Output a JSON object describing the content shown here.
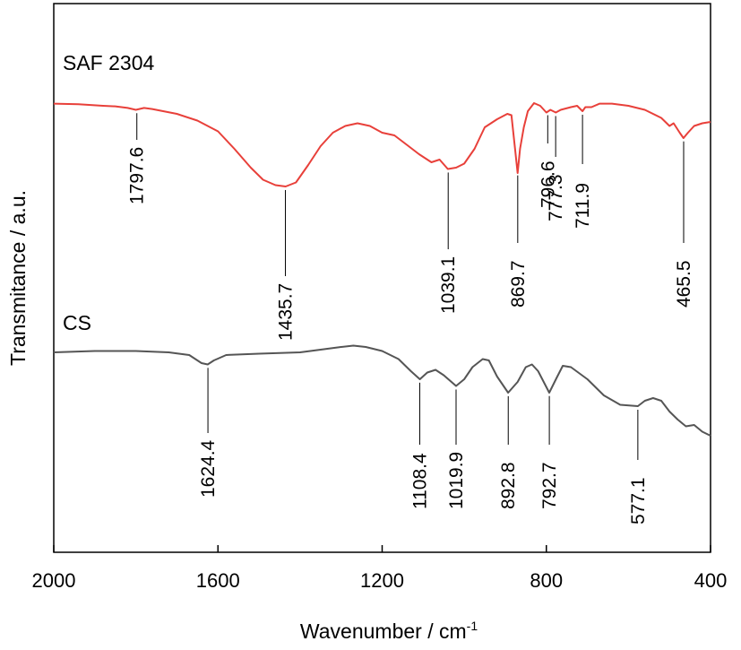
{
  "chart_data": {
    "type": "line",
    "xlabel": "Wavenumber / cm",
    "xlabel_sup": "-1",
    "ylabel": "Transmitance / a.u.",
    "xlim": [
      2000,
      400
    ],
    "x_reversed": true,
    "y_ticks_shown": false,
    "grid": false,
    "x_ticks": [
      2000,
      1600,
      1200,
      800,
      400
    ],
    "x_tick_labels": [
      "2000",
      "1600",
      "1200",
      "800",
      "400"
    ],
    "series": [
      {
        "name": "SAF 2304",
        "color": "#e8403a",
        "points": [
          [
            2000,
            0.92
          ],
          [
            1940,
            0.94
          ],
          [
            1880,
            1.0
          ],
          [
            1850,
            1.02
          ],
          [
            1820,
            1.08
          ],
          [
            1800,
            1.15
          ],
          [
            1780,
            1.08
          ],
          [
            1760,
            1.12
          ],
          [
            1700,
            1.3
          ],
          [
            1650,
            1.55
          ],
          [
            1600,
            1.95
          ],
          [
            1560,
            2.6
          ],
          [
            1520,
            3.3
          ],
          [
            1490,
            3.75
          ],
          [
            1460,
            3.95
          ],
          [
            1435,
            4.0
          ],
          [
            1410,
            3.85
          ],
          [
            1380,
            3.2
          ],
          [
            1350,
            2.5
          ],
          [
            1320,
            2.0
          ],
          [
            1290,
            1.75
          ],
          [
            1260,
            1.65
          ],
          [
            1230,
            1.75
          ],
          [
            1200,
            2.0
          ],
          [
            1170,
            2.1
          ],
          [
            1140,
            2.45
          ],
          [
            1110,
            2.8
          ],
          [
            1080,
            3.1
          ],
          [
            1060,
            3.0
          ],
          [
            1040,
            3.35
          ],
          [
            1020,
            3.3
          ],
          [
            1000,
            3.15
          ],
          [
            975,
            2.6
          ],
          [
            950,
            1.8
          ],
          [
            920,
            1.5
          ],
          [
            895,
            1.3
          ],
          [
            885,
            1.35
          ],
          [
            877,
            2.5
          ],
          [
            870,
            3.5
          ],
          [
            864,
            2.6
          ],
          [
            855,
            1.8
          ],
          [
            845,
            1.2
          ],
          [
            830,
            0.9
          ],
          [
            815,
            1.0
          ],
          [
            800,
            1.25
          ],
          [
            790,
            1.15
          ],
          [
            777,
            1.25
          ],
          [
            765,
            1.15
          ],
          [
            740,
            1.05
          ],
          [
            725,
            1.0
          ],
          [
            712,
            1.2
          ],
          [
            705,
            1.05
          ],
          [
            690,
            1.05
          ],
          [
            670,
            0.92
          ],
          [
            640,
            0.92
          ],
          [
            600,
            1.0
          ],
          [
            560,
            1.15
          ],
          [
            520,
            1.45
          ],
          [
            500,
            1.75
          ],
          [
            490,
            1.65
          ],
          [
            475,
            2.0
          ],
          [
            466,
            2.2
          ],
          [
            455,
            2.0
          ],
          [
            440,
            1.75
          ],
          [
            420,
            1.65
          ],
          [
            400,
            1.6
          ]
        ],
        "annotations": [
          {
            "x": 1797.6,
            "label": "1797.6"
          },
          {
            "x": 1435.7,
            "label": "1435.7"
          },
          {
            "x": 1039.1,
            "label": "1039.1"
          },
          {
            "x": 869.7,
            "label": "869.7"
          },
          {
            "x": 796.6,
            "label": "796.6"
          },
          {
            "x": 777.3,
            "label": "777.3"
          },
          {
            "x": 711.9,
            "label": "711.9"
          },
          {
            "x": 465.5,
            "label": "465.5"
          }
        ]
      },
      {
        "name": "CS",
        "color": "#555555",
        "points": [
          [
            2000,
            0.3
          ],
          [
            1900,
            0.25
          ],
          [
            1800,
            0.25
          ],
          [
            1720,
            0.3
          ],
          [
            1670,
            0.4
          ],
          [
            1640,
            0.7
          ],
          [
            1625,
            0.75
          ],
          [
            1610,
            0.6
          ],
          [
            1580,
            0.4
          ],
          [
            1500,
            0.35
          ],
          [
            1400,
            0.3
          ],
          [
            1350,
            0.2
          ],
          [
            1300,
            0.1
          ],
          [
            1270,
            0.05
          ],
          [
            1240,
            0.1
          ],
          [
            1200,
            0.25
          ],
          [
            1160,
            0.55
          ],
          [
            1130,
            1.0
          ],
          [
            1108,
            1.3
          ],
          [
            1090,
            1.05
          ],
          [
            1070,
            0.95
          ],
          [
            1050,
            1.15
          ],
          [
            1020,
            1.55
          ],
          [
            1000,
            1.3
          ],
          [
            980,
            0.85
          ],
          [
            955,
            0.55
          ],
          [
            940,
            0.6
          ],
          [
            920,
            1.2
          ],
          [
            893,
            1.8
          ],
          [
            870,
            1.4
          ],
          [
            850,
            0.85
          ],
          [
            835,
            0.75
          ],
          [
            820,
            1.0
          ],
          [
            793,
            1.8
          ],
          [
            775,
            1.25
          ],
          [
            760,
            0.8
          ],
          [
            740,
            0.85
          ],
          [
            700,
            1.3
          ],
          [
            660,
            1.9
          ],
          [
            620,
            2.25
          ],
          [
            577,
            2.3
          ],
          [
            560,
            2.1
          ],
          [
            540,
            2.0
          ],
          [
            520,
            2.1
          ],
          [
            500,
            2.5
          ],
          [
            480,
            2.8
          ],
          [
            460,
            3.05
          ],
          [
            440,
            3.0
          ],
          [
            420,
            3.25
          ],
          [
            400,
            3.4
          ]
        ],
        "annotations": [
          {
            "x": 1624.4,
            "label": "1624.4"
          },
          {
            "x": 1108.4,
            "label": "1108.4"
          },
          {
            "x": 1019.9,
            "label": "1019.9"
          },
          {
            "x": 892.8,
            "label": "892.8"
          },
          {
            "x": 792.7,
            "label": "792.7"
          },
          {
            "x": 577.1,
            "label": "577.1"
          }
        ]
      }
    ]
  }
}
